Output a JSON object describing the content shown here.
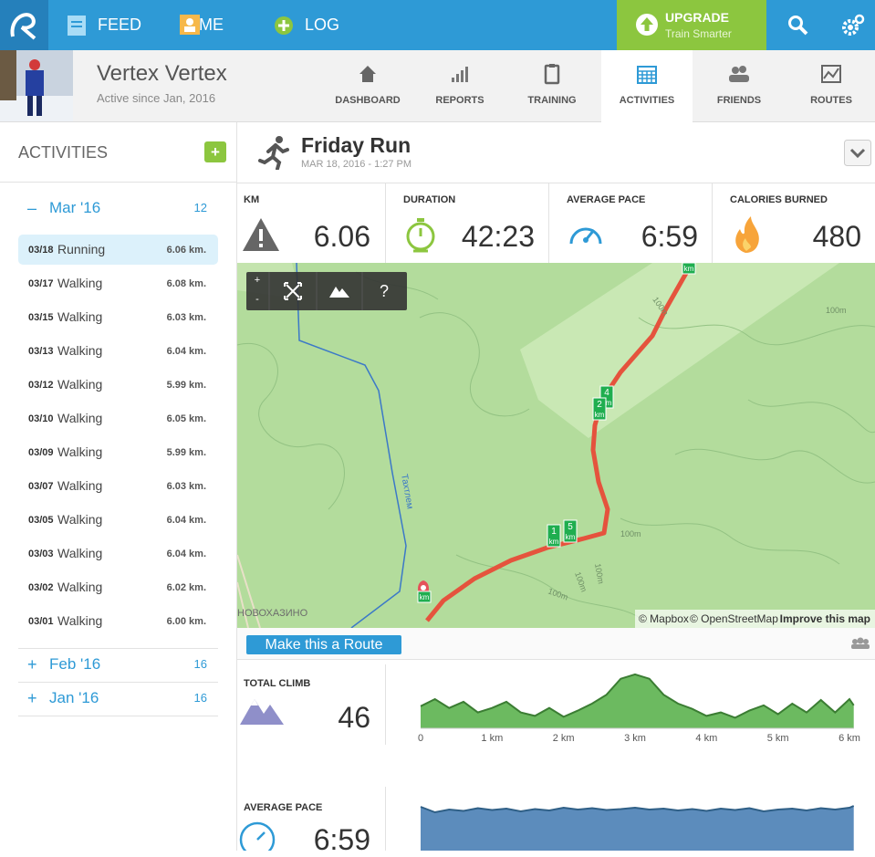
{
  "nav": {
    "items": [
      "FEED",
      "ME",
      "LOG"
    ],
    "upgrade": {
      "title": "UPGRADE",
      "subtitle": "Train Smarter"
    }
  },
  "profile": {
    "name": "Vertex Vertex",
    "since": "Active since Jan, 2016"
  },
  "tabs": [
    "DASHBOARD",
    "REPORTS",
    "TRAINING",
    "ACTIVITIES",
    "FRIENDS",
    "ROUTES"
  ],
  "sidebar": {
    "title": "ACTIVITIES",
    "add": "+",
    "months": [
      {
        "toggle": "–",
        "label": "Mar '16",
        "count": "12",
        "activities": [
          {
            "date": "03/18",
            "type": "Running",
            "distance": "6.06 km."
          },
          {
            "date": "03/17",
            "type": "Walking",
            "distance": "6.08 km."
          },
          {
            "date": "03/15",
            "type": "Walking",
            "distance": "6.03 km."
          },
          {
            "date": "03/13",
            "type": "Walking",
            "distance": "6.04 km."
          },
          {
            "date": "03/12",
            "type": "Walking",
            "distance": "5.99 km."
          },
          {
            "date": "03/10",
            "type": "Walking",
            "distance": "6.05 km."
          },
          {
            "date": "03/09",
            "type": "Walking",
            "distance": "5.99 km."
          },
          {
            "date": "03/07",
            "type": "Walking",
            "distance": "6.03 km."
          },
          {
            "date": "03/05",
            "type": "Walking",
            "distance": "6.04 km."
          },
          {
            "date": "03/03",
            "type": "Walking",
            "distance": "6.04 km."
          },
          {
            "date": "03/02",
            "type": "Walking",
            "distance": "6.02 km."
          },
          {
            "date": "03/01",
            "type": "Walking",
            "distance": "6.00 km."
          }
        ]
      },
      {
        "toggle": "+",
        "label": "Feb '16",
        "count": "16"
      },
      {
        "toggle": "+",
        "label": "Jan '16",
        "count": "16"
      }
    ]
  },
  "activity": {
    "title": "Friday Run",
    "date": "MAR 18, 2016 - 1:27 PM"
  },
  "stats": [
    {
      "label": "KM",
      "value": "6.06"
    },
    {
      "label": "DURATION",
      "value": "42:23"
    },
    {
      "label": "AVERAGE PACE",
      "value": "6:59"
    },
    {
      "label": "CALORIES BURNED",
      "value": "480"
    }
  ],
  "map": {
    "zoom_in": "+",
    "zoom_out": "-",
    "help": "?",
    "km_unit": "km",
    "km_markers": [
      "4",
      "2",
      "5",
      "1"
    ],
    "contour_label": "100m",
    "river": "Тахтлем",
    "place": "НОВОХАЗИНО",
    "attribution": [
      "© Mapbox",
      "© OpenStreetMap"
    ],
    "improve": "Improve this map"
  },
  "route_button": "Make this a Route",
  "climb": {
    "label": "TOTAL CLIMB",
    "value": "46"
  },
  "climb_chart": {
    "type": "area",
    "color": "#5cb34f",
    "x": [
      0,
      0.2,
      0.4,
      0.6,
      0.8,
      1.0,
      1.2,
      1.4,
      1.6,
      1.8,
      2.0,
      2.2,
      2.4,
      2.6,
      2.8,
      3.0,
      3.2,
      3.4,
      3.6,
      3.8,
      4.0,
      4.2,
      4.4,
      4.6,
      4.8,
      5.0,
      5.2,
      5.4,
      5.6,
      5.8,
      6.0,
      6.06
    ],
    "values": [
      25,
      33,
      23,
      30,
      18,
      23,
      30,
      18,
      14,
      23,
      13,
      20,
      28,
      38,
      56,
      61,
      56,
      38,
      28,
      22,
      14,
      18,
      12,
      20,
      26,
      16,
      28,
      18,
      32,
      18,
      33,
      26
    ],
    "xlim": [
      0,
      6
    ],
    "ylim": [
      0,
      65
    ],
    "xticks": [
      0,
      {
        "value": 1,
        "label": "1 km"
      },
      {
        "value": 2,
        "label": "2 km"
      },
      {
        "value": 3,
        "label": "3 km"
      },
      {
        "value": 4,
        "label": "4 km"
      },
      {
        "value": 5,
        "label": "5 km"
      },
      {
        "value": 6,
        "label": "6 km"
      }
    ]
  },
  "pace": {
    "label": "AVERAGE PACE",
    "value": "6:59"
  },
  "pace_chart": {
    "type": "area",
    "color": "#4a7fb5",
    "x": [
      0,
      0.2,
      0.4,
      0.6,
      0.8,
      1.0,
      1.2,
      1.4,
      1.6,
      1.8,
      2.0,
      2.2,
      2.4,
      2.6,
      2.8,
      3.0,
      3.2,
      3.4,
      3.6,
      3.8,
      4.0,
      4.2,
      4.4,
      4.6,
      4.8,
      5.0,
      5.2,
      5.4,
      5.6,
      5.8,
      6.0,
      6.06
    ],
    "values": [
      7.02,
      6.9,
      6.96,
      6.93,
      6.99,
      6.95,
      6.98,
      6.92,
      6.97,
      6.94,
      7.0,
      6.96,
      6.99,
      6.95,
      6.97,
      7.0,
      6.96,
      6.98,
      6.94,
      6.97,
      6.93,
      6.98,
      6.95,
      6.99,
      6.92,
      6.96,
      6.98,
      6.94,
      6.99,
      6.96,
      7.0,
      7.04
    ],
    "xlim": [
      0,
      6
    ],
    "ylim": [
      5.5,
      7.3
    ]
  }
}
